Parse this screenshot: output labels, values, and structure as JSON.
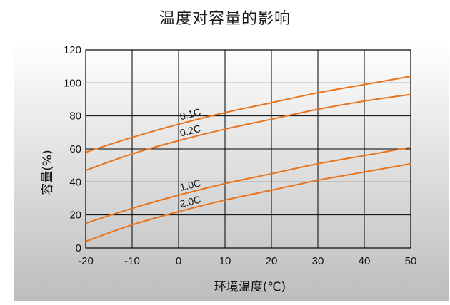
{
  "page": {
    "title": "温度对容量的影响"
  },
  "colors": {
    "curve": "#e8741e",
    "grid": "#000000",
    "panel_top": "#ffffff",
    "panel_bottom": "#bdbdbd"
  },
  "chart_data": {
    "type": "line",
    "title": "温度对容量的影响",
    "xlabel": "环境温度(℃)",
    "ylabel": "容量(%)",
    "xlim": [
      -20,
      50
    ],
    "ylim": [
      0,
      120
    ],
    "x_ticks": [
      -20,
      -10,
      0,
      10,
      20,
      30,
      40,
      50
    ],
    "y_ticks": [
      0,
      20,
      40,
      60,
      80,
      100,
      120
    ],
    "grid": true,
    "series": [
      {
        "name": "0.1C",
        "x": [
          -20,
          -10,
          0,
          10,
          20,
          30,
          40,
          50
        ],
        "values": [
          58,
          67,
          75,
          82,
          88,
          94,
          99,
          104
        ]
      },
      {
        "name": "0.2C",
        "x": [
          -20,
          -10,
          0,
          10,
          20,
          30,
          40,
          50
        ],
        "values": [
          47,
          57,
          65,
          72,
          78,
          84,
          89,
          93
        ]
      },
      {
        "name": "1.0C",
        "x": [
          -20,
          -10,
          0,
          10,
          20,
          30,
          40,
          50
        ],
        "values": [
          15,
          24,
          32,
          39,
          45,
          51,
          56,
          61
        ]
      },
      {
        "name": "2.0C",
        "x": [
          -20,
          -10,
          0,
          10,
          20,
          30,
          40,
          50
        ],
        "values": [
          4,
          14,
          22,
          29,
          35,
          41,
          46,
          51
        ]
      }
    ]
  }
}
